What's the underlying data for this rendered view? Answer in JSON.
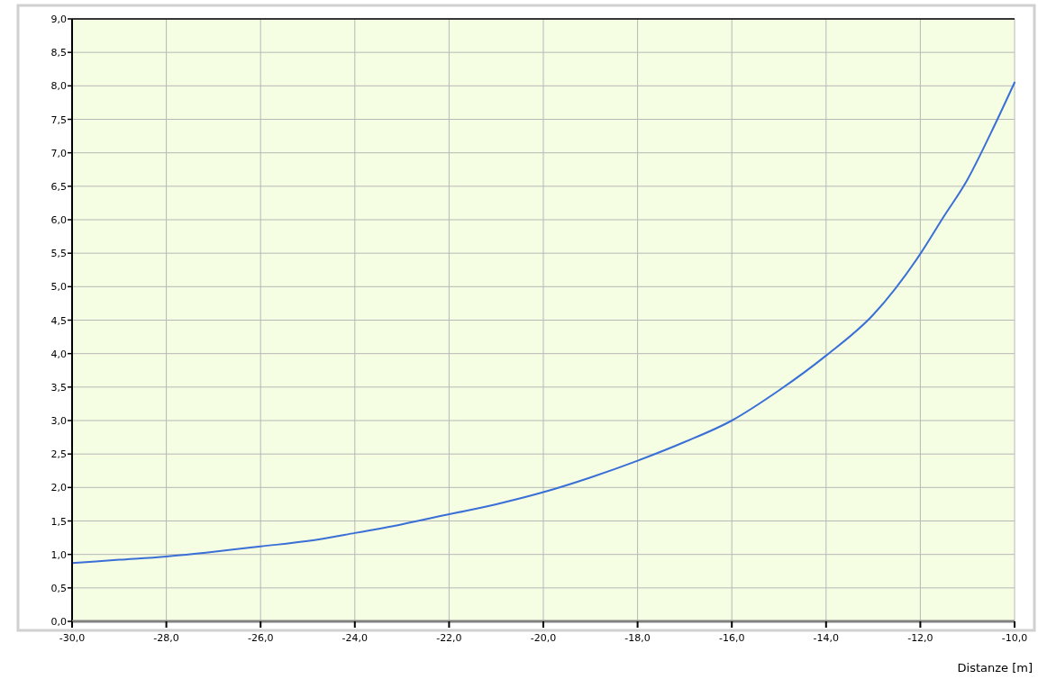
{
  "chart_data": {
    "type": "line",
    "xlabel": "Distanze [m]",
    "x": [
      -30,
      -29,
      -28,
      -27,
      -26,
      -25,
      -24,
      -23,
      -22,
      -21,
      -20,
      -19,
      -18,
      -17,
      -16,
      -15,
      -14,
      -13,
      -12,
      -11.5,
      -11,
      -10.5,
      -10
    ],
    "series": [
      {
        "color": "#3a6fd6",
        "values": [
          0.87,
          0.92,
          0.97,
          1.04,
          1.12,
          1.2,
          1.32,
          1.45,
          1.6,
          1.75,
          1.93,
          2.15,
          2.4,
          2.68,
          3.0,
          3.45,
          3.97,
          4.58,
          5.49,
          6.05,
          6.6,
          7.3,
          8.05
        ]
      }
    ],
    "xlim": [
      -30,
      -10
    ],
    "ylim": [
      0,
      9
    ],
    "xticks": [
      {
        "value": -30,
        "label": "-30,0"
      },
      {
        "value": -28,
        "label": "-28,0"
      },
      {
        "value": -26,
        "label": "-26,0"
      },
      {
        "value": -24,
        "label": "-24,0"
      },
      {
        "value": -22,
        "label": "-22,0"
      },
      {
        "value": -20,
        "label": "-20,0"
      },
      {
        "value": -18,
        "label": "-18,0"
      },
      {
        "value": -16,
        "label": "-16,0"
      },
      {
        "value": -14,
        "label": "-14,0"
      },
      {
        "value": -12,
        "label": "-12,0"
      },
      {
        "value": -10,
        "label": "-10,0"
      }
    ],
    "yticks": [
      {
        "value": 0,
        "label": "0,0"
      },
      {
        "value": 0.5,
        "label": "0,5"
      },
      {
        "value": 1,
        "label": "1,0"
      },
      {
        "value": 1.5,
        "label": "1,5"
      },
      {
        "value": 2,
        "label": "2,0"
      },
      {
        "value": 2.5,
        "label": "2,5"
      },
      {
        "value": 3,
        "label": "3,0"
      },
      {
        "value": 3.5,
        "label": "3,5"
      },
      {
        "value": 4,
        "label": "4,0"
      },
      {
        "value": 4.5,
        "label": "4,5"
      },
      {
        "value": 5,
        "label": "5,0"
      },
      {
        "value": 5.5,
        "label": "5,5"
      },
      {
        "value": 6,
        "label": "6,0"
      },
      {
        "value": 6.5,
        "label": "6,5"
      },
      {
        "value": 7,
        "label": "7,0"
      },
      {
        "value": 7.5,
        "label": "7,5"
      },
      {
        "value": 8,
        "label": "8,0"
      },
      {
        "value": 8.5,
        "label": "8,5"
      },
      {
        "value": 9,
        "label": "9,0"
      }
    ],
    "grid": true
  }
}
